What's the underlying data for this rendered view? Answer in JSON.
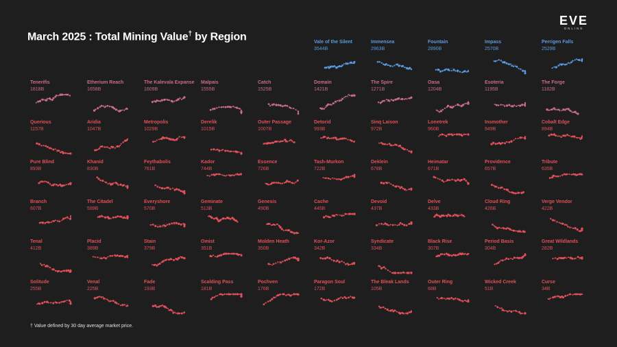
{
  "title": {
    "main": "March 2025 : Total Mining Value",
    "dagger": "†",
    "suffix": " by Region"
  },
  "logo": {
    "big": "EVE",
    "small": "ONLINE"
  },
  "footnote": "† Value defined by 30 day average market price.",
  "colors": {
    "top": "#5a9be0",
    "high": "#c86b90",
    "mid": "#e0505a",
    "background": "#1e1e1e"
  },
  "chart_data": {
    "type": "small-multiples",
    "title": "March 2025 : Total Mining Value† by Region",
    "unit": "B",
    "regions": [
      {
        "name": "Vale of the Silent",
        "value": "3544B"
      },
      {
        "name": "Immensea",
        "value": "2963B"
      },
      {
        "name": "Fountain",
        "value": "2890B"
      },
      {
        "name": "Impass",
        "value": "2570B"
      },
      {
        "name": "Perrigen Falls",
        "value": "2529B"
      },
      {
        "name": "Tenerifis",
        "value": "1818B"
      },
      {
        "name": "Etherium Reach",
        "value": "1658B"
      },
      {
        "name": "The Kalevala Expanse",
        "value": "1609B"
      },
      {
        "name": "Malpais",
        "value": "1555B"
      },
      {
        "name": "Catch",
        "value": "1525B"
      },
      {
        "name": "Domain",
        "value": "1421B"
      },
      {
        "name": "The Spire",
        "value": "1271B"
      },
      {
        "name": "Oasa",
        "value": "1204B"
      },
      {
        "name": "Esoteria",
        "value": "1195B"
      },
      {
        "name": "The Forge",
        "value": "1182B"
      },
      {
        "name": "Querious",
        "value": "1157B"
      },
      {
        "name": "Aridia",
        "value": "1047B"
      },
      {
        "name": "Metropolis",
        "value": "1029B"
      },
      {
        "name": "Derelik",
        "value": "1015B"
      },
      {
        "name": "Outer Passage",
        "value": "1007B"
      },
      {
        "name": "Detorid",
        "value": "993B"
      },
      {
        "name": "Sinq Laison",
        "value": "972B"
      },
      {
        "name": "Lonetrek",
        "value": "960B"
      },
      {
        "name": "Insmother",
        "value": "949B"
      },
      {
        "name": "Cobalt Edge",
        "value": "894B"
      },
      {
        "name": "Pure Blind",
        "value": "893B"
      },
      {
        "name": "Khanid",
        "value": "830B"
      },
      {
        "name": "Feythabolis",
        "value": "761B"
      },
      {
        "name": "Kador",
        "value": "744B"
      },
      {
        "name": "Essence",
        "value": "726B"
      },
      {
        "name": "Tash-Murkon",
        "value": "722B"
      },
      {
        "name": "Deklein",
        "value": "678B"
      },
      {
        "name": "Heimatar",
        "value": "671B"
      },
      {
        "name": "Providence",
        "value": "657B"
      },
      {
        "name": "Tribute",
        "value": "635B"
      },
      {
        "name": "Branch",
        "value": "607B"
      },
      {
        "name": "The Citadel",
        "value": "599B"
      },
      {
        "name": "Everyshore",
        "value": "570B"
      },
      {
        "name": "Geminate",
        "value": "513B"
      },
      {
        "name": "Genesis",
        "value": "490B"
      },
      {
        "name": "Cache",
        "value": "445B"
      },
      {
        "name": "Devoid",
        "value": "437B"
      },
      {
        "name": "Delve",
        "value": "433B"
      },
      {
        "name": "Cloud Ring",
        "value": "426B"
      },
      {
        "name": "Verge Vendor",
        "value": "422B"
      },
      {
        "name": "Tenal",
        "value": "412B"
      },
      {
        "name": "Placid",
        "value": "389B"
      },
      {
        "name": "Stain",
        "value": "379B"
      },
      {
        "name": "Omist",
        "value": "351B"
      },
      {
        "name": "Molden Heath",
        "value": "350B"
      },
      {
        "name": "Kor-Azor",
        "value": "342B"
      },
      {
        "name": "Syndicate",
        "value": "334B"
      },
      {
        "name": "Black Rise",
        "value": "307B"
      },
      {
        "name": "Period Basis",
        "value": "304B"
      },
      {
        "name": "Great Wildlands",
        "value": "282B"
      },
      {
        "name": "Solitude",
        "value": "255B"
      },
      {
        "name": "Venal",
        "value": "225B"
      },
      {
        "name": "Fade",
        "value": "193B"
      },
      {
        "name": "Scalding Pass",
        "value": "181B"
      },
      {
        "name": "Pochven",
        "value": "176B"
      },
      {
        "name": "Paragon Soul",
        "value": "172B"
      },
      {
        "name": "The Bleak Lands",
        "value": "105B"
      },
      {
        "name": "Outer Ring",
        "value": "68B"
      },
      {
        "name": "Wicked Creek",
        "value": "51B"
      },
      {
        "name": "Curse",
        "value": "34B"
      }
    ]
  }
}
